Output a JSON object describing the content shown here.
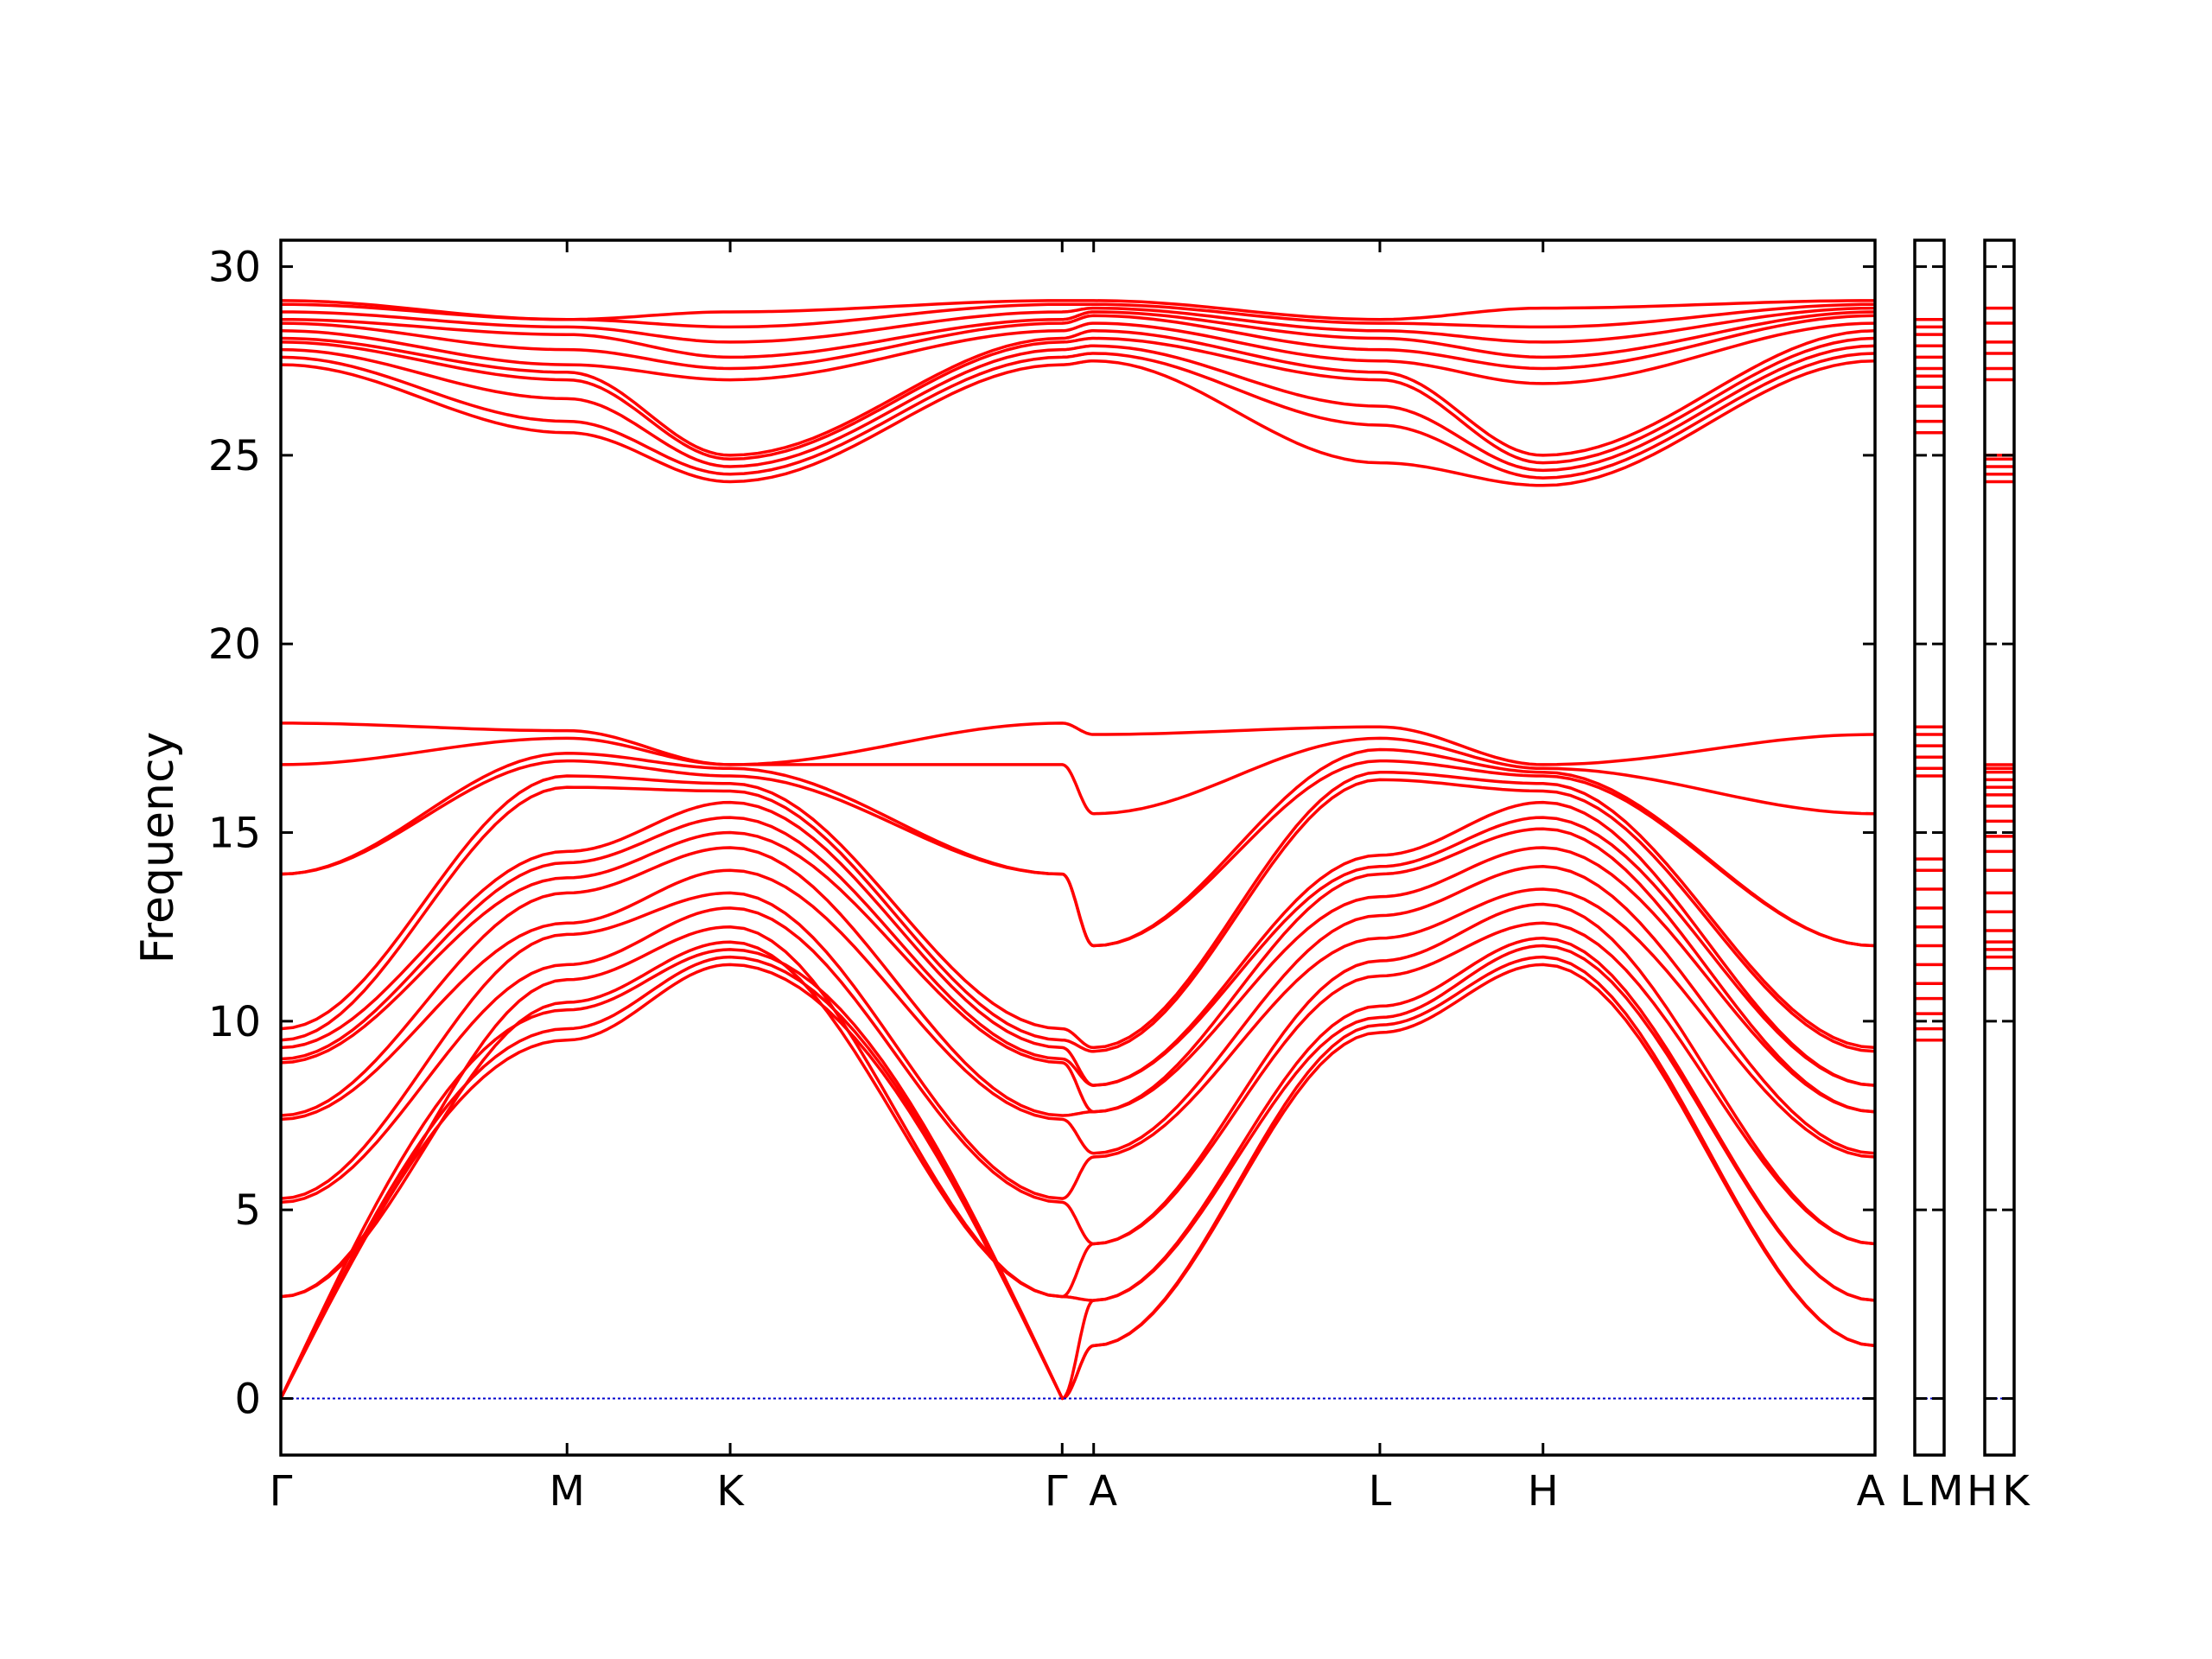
{
  "chart_data": {
    "type": "line",
    "title": "",
    "ylabel": "Frequency",
    "xlabel": "",
    "ylim": [
      -1.5,
      30.7
    ],
    "yticks": [
      0,
      5,
      10,
      15,
      20,
      25,
      30
    ],
    "grid": false,
    "legend": "none",
    "line_color": "#ff0000",
    "zero_line_color": "#0000cc",
    "panels": [
      {
        "id": "main",
        "x_domain": [
          0,
          5.57
        ],
        "high_symmetry": [
          {
            "label": "Γ",
            "x": 0
          },
          {
            "label": "M",
            "x": 1.0
          },
          {
            "label": "K",
            "x": 1.57
          },
          {
            "label": "Γ",
            "x": 2.73
          },
          {
            "label": "A",
            "x": 2.84
          },
          {
            "label": "L",
            "x": 3.84
          },
          {
            "label": "H",
            "x": 4.41
          },
          {
            "label": "A",
            "x": 5.57
          }
        ]
      },
      {
        "id": "LM",
        "labels": [
          "L",
          "M"
        ]
      },
      {
        "id": "HK",
        "labels": [
          "H",
          "K"
        ]
      }
    ],
    "node_frequencies": {
      "Γ": [
        0,
        0,
        0,
        2.7,
        2.7,
        5.2,
        5.3,
        7.4,
        7.5,
        8.9,
        9.0,
        9.3,
        9.5,
        9.8,
        13.9,
        13.9,
        16.8,
        17.9,
        27.4,
        27.6,
        27.8,
        28.0,
        28.1,
        28.3,
        28.5,
        28.6,
        28.8,
        29.0,
        29.1
      ],
      "M": [
        9.5,
        9.8,
        10.3,
        10.5,
        11.1,
        11.5,
        12.3,
        12.6,
        13.4,
        13.8,
        14.2,
        14.5,
        16.2,
        16.5,
        16.9,
        17.1,
        17.5,
        17.7,
        25.6,
        25.9,
        26.5,
        27.0,
        27.2,
        27.4,
        27.8,
        28.2,
        28.4,
        28.6,
        28.6
      ],
      "K": [
        11.5,
        11.7,
        11.9,
        12.1,
        12.5,
        13.0,
        13.4,
        14.0,
        14.6,
        15.0,
        15.4,
        15.8,
        16.1,
        16.3,
        16.5,
        16.7,
        16.8,
        16.8,
        24.3,
        24.5,
        24.7,
        24.9,
        25.0,
        27.0,
        27.3,
        27.6,
        28.0,
        28.4,
        28.8
      ],
      "A": [
        1.4,
        1.4,
        2.6,
        2.6,
        4.1,
        4.1,
        6.4,
        6.5,
        7.6,
        7.6,
        8.3,
        8.3,
        9.2,
        9.3,
        12.0,
        12.0,
        15.5,
        17.6,
        27.5,
        27.7,
        27.9,
        28.1,
        28.3,
        28.5,
        28.7,
        28.8,
        28.9,
        29.0,
        29.1
      ],
      "L": [
        9.7,
        9.9,
        10.1,
        10.4,
        11.2,
        11.6,
        12.2,
        12.8,
        13.3,
        13.9,
        14.1,
        14.4,
        16.4,
        16.6,
        16.9,
        17.2,
        17.5,
        17.8,
        24.8,
        25.8,
        26.3,
        27.0,
        27.2,
        27.5,
        27.8,
        28.1,
        28.3,
        28.5,
        28.6
      ],
      "H": [
        11.5,
        11.7,
        12.0,
        12.2,
        12.6,
        13.1,
        13.5,
        14.1,
        14.6,
        15.1,
        15.4,
        15.8,
        16.1,
        16.3,
        16.5,
        16.6,
        16.7,
        16.8,
        24.2,
        24.4,
        24.6,
        24.8,
        25.0,
        26.9,
        27.3,
        27.6,
        28.0,
        28.4,
        28.9
      ]
    },
    "side_panel_levels": {
      "LM": [
        9.5,
        9.8,
        10.2,
        10.6,
        11.0,
        11.5,
        12.0,
        12.5,
        13.0,
        13.5,
        14.0,
        14.3,
        16.5,
        16.7,
        17.0,
        17.3,
        17.6,
        17.8,
        25.6,
        25.9,
        26.3,
        26.8,
        27.1,
        27.3,
        27.6,
        27.9,
        28.2,
        28.4,
        28.6
      ],
      "HK": [
        11.4,
        11.7,
        11.9,
        12.1,
        12.4,
        12.9,
        13.4,
        14.0,
        14.5,
        14.9,
        15.3,
        15.7,
        16.0,
        16.2,
        16.4,
        16.6,
        16.7,
        16.8,
        24.3,
        24.5,
        24.7,
        24.9,
        25.0,
        27.0,
        27.3,
        27.7,
        28.0,
        28.5,
        28.9
      ]
    }
  }
}
